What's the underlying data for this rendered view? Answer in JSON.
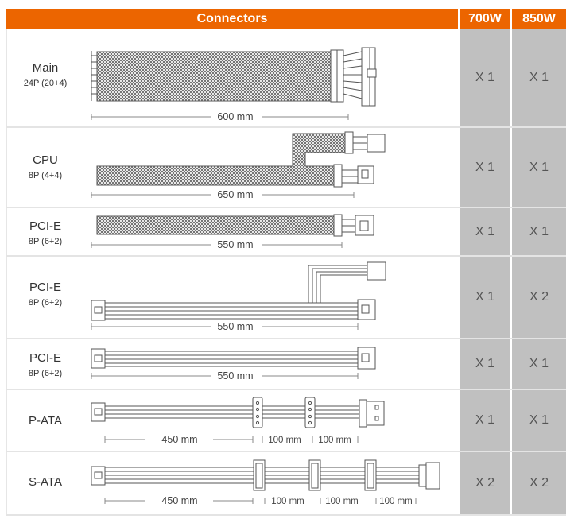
{
  "header": {
    "connectors": "Connectors",
    "col_700": "700W",
    "col_850": "850W"
  },
  "colors": {
    "header": "#ec6500",
    "count_cell": "#c0c0c0"
  },
  "rows": [
    {
      "name": "Main",
      "pins": "24P (20+4)",
      "length": "600 mm",
      "w700": "X 1",
      "w850": "X 1"
    },
    {
      "name": "CPU",
      "pins": "8P (4+4)",
      "length": "650 mm",
      "w700": "X 1",
      "w850": "X 1"
    },
    {
      "name": "PCI-E",
      "pins": "8P (6+2)",
      "length": "550 mm",
      "w700": "X 1",
      "w850": "X 1"
    },
    {
      "name": "PCI-E",
      "pins": "8P (6+2)",
      "length": "550 mm",
      "w700": "X 1",
      "w850": "X 2"
    },
    {
      "name": "PCI-E",
      "pins": "8P (6+2)",
      "length": "550 mm",
      "w700": "X 1",
      "w850": "X 1"
    },
    {
      "name": "P-ATA",
      "pins": "",
      "length": "450 mm",
      "segments": [
        "100 mm",
        "100 mm"
      ],
      "w700": "X 1",
      "w850": "X 1"
    },
    {
      "name": "S-ATA",
      "pins": "",
      "length": "450 mm",
      "segments": [
        "100 mm",
        "100 mm",
        "100 mm"
      ],
      "w700": "X 2",
      "w850": "X 2"
    }
  ]
}
